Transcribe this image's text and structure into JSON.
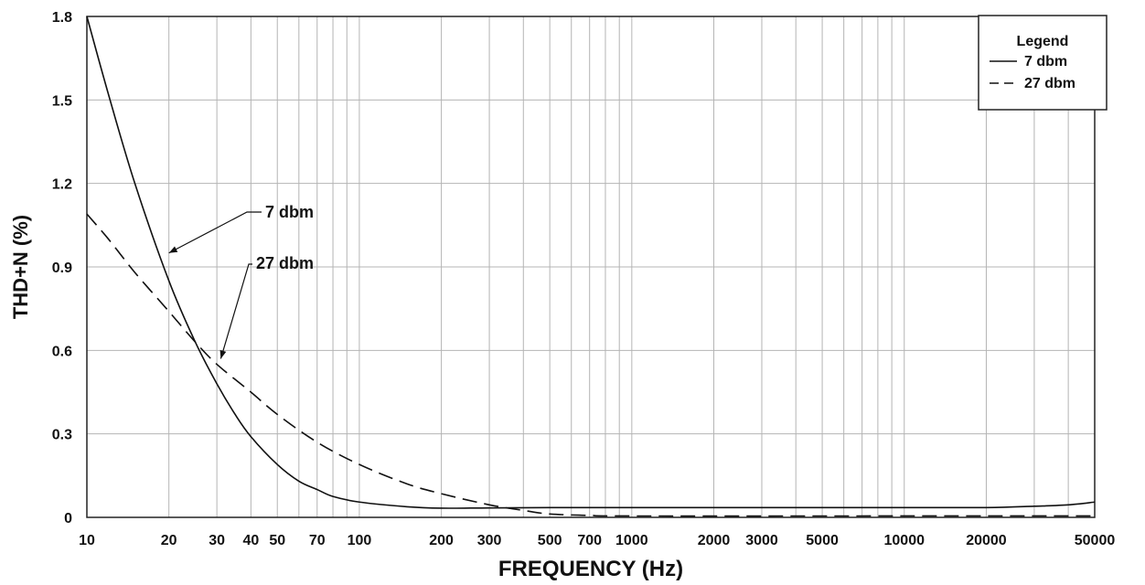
{
  "chart_data": {
    "type": "line",
    "xlabel": "FREQUENCY (Hz)",
    "ylabel": "THD+N (%)",
    "x_scale": "log",
    "xlim": [
      10,
      50000
    ],
    "ylim": [
      0,
      1.8
    ],
    "grid": true,
    "x_ticks": [
      10,
      20,
      30,
      40,
      50,
      70,
      100,
      200,
      300,
      500,
      700,
      1000,
      2000,
      3000,
      5000,
      10000,
      20000,
      50000
    ],
    "x_tick_labels": [
      "10",
      "20",
      "30",
      "40",
      "50",
      "70",
      "100",
      "200",
      "300",
      "500",
      "700",
      "1000",
      "2000",
      "3000",
      "5000",
      "10000",
      "20000",
      "50000"
    ],
    "y_ticks": [
      0,
      0.3,
      0.6,
      0.9,
      1.2,
      1.5,
      1.8
    ],
    "y_tick_labels": [
      "0",
      "0.3",
      "0.6",
      "0.9",
      "1.2",
      "1.5",
      "1.8"
    ],
    "legend": {
      "title": "Legend",
      "placement": "top-right",
      "entries": [
        "7 dbm",
        "27 dbm"
      ]
    },
    "series": [
      {
        "name": "7 dbm",
        "style": "solid",
        "points": [
          [
            10,
            1.8
          ],
          [
            12,
            1.52
          ],
          [
            15,
            1.2
          ],
          [
            20,
            0.85
          ],
          [
            25,
            0.63
          ],
          [
            30,
            0.48
          ],
          [
            35,
            0.37
          ],
          [
            40,
            0.29
          ],
          [
            50,
            0.19
          ],
          [
            60,
            0.13
          ],
          [
            70,
            0.1
          ],
          [
            80,
            0.075
          ],
          [
            100,
            0.055
          ],
          [
            150,
            0.038
          ],
          [
            200,
            0.033
          ],
          [
            300,
            0.034
          ],
          [
            500,
            0.035
          ],
          [
            1000,
            0.035
          ],
          [
            3000,
            0.035
          ],
          [
            10000,
            0.035
          ],
          [
            20000,
            0.035
          ],
          [
            30000,
            0.04
          ],
          [
            40000,
            0.045
          ],
          [
            50000,
            0.055
          ]
        ]
      },
      {
        "name": "27 dbm",
        "style": "dashed",
        "points": [
          [
            10,
            1.09
          ],
          [
            12,
            1.0
          ],
          [
            15,
            0.88
          ],
          [
            20,
            0.74
          ],
          [
            25,
            0.63
          ],
          [
            30,
            0.55
          ],
          [
            40,
            0.45
          ],
          [
            50,
            0.37
          ],
          [
            70,
            0.27
          ],
          [
            100,
            0.19
          ],
          [
            150,
            0.12
          ],
          [
            200,
            0.085
          ],
          [
            300,
            0.045
          ],
          [
            400,
            0.025
          ],
          [
            500,
            0.012
          ],
          [
            700,
            0.007
          ],
          [
            1000,
            0.005
          ],
          [
            10000,
            0.005
          ],
          [
            50000,
            0.005
          ]
        ]
      }
    ],
    "annotations": [
      {
        "text": "7 dbm",
        "target": [
          20,
          0.95
        ]
      },
      {
        "text": "27 dbm",
        "target": [
          31,
          0.57
        ]
      }
    ]
  }
}
